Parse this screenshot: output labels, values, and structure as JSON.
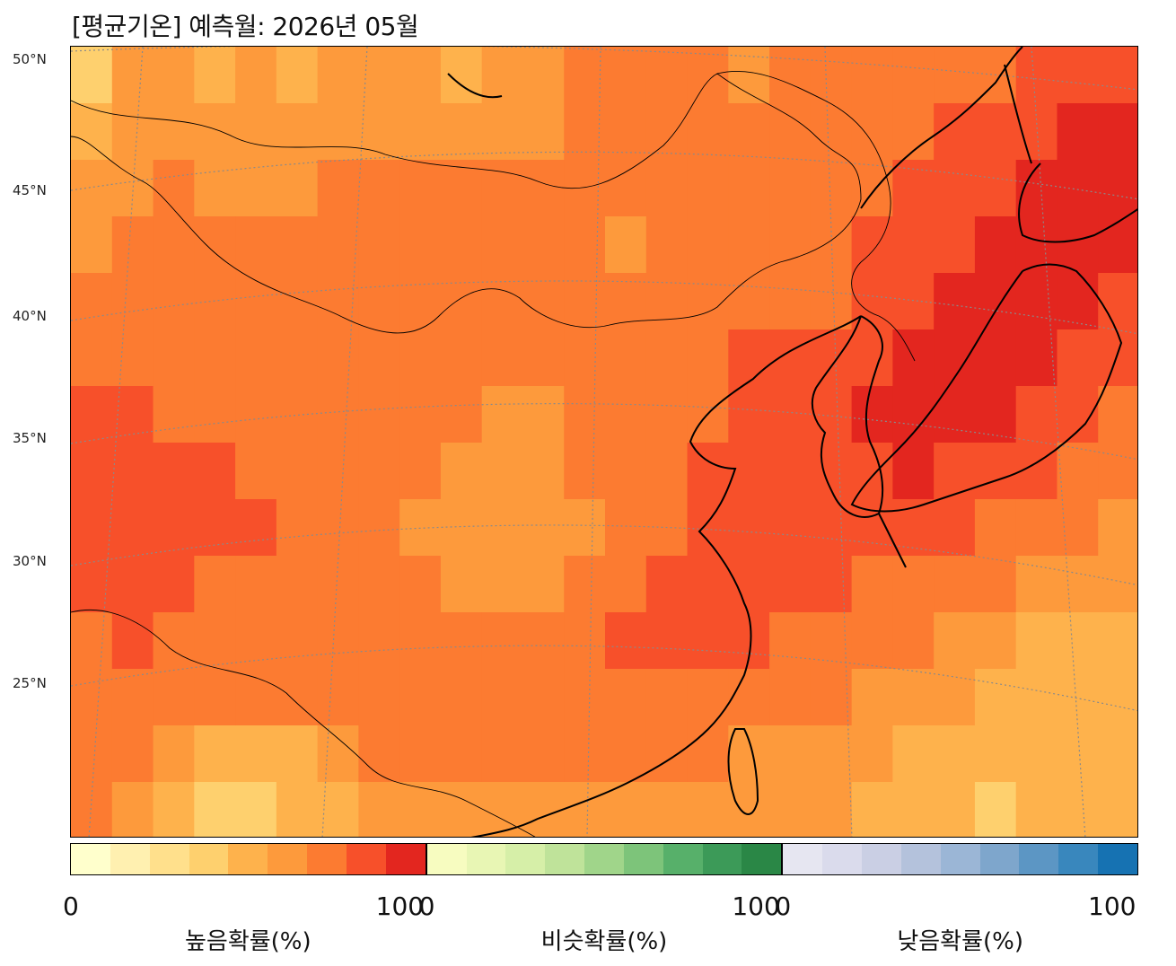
{
  "title": "[평균기온] 예측월: 2026년 05월",
  "lat_labels": [
    "50°N",
    "45°N",
    "40°N",
    "35°N",
    "30°N",
    "25°N"
  ],
  "colorbars": [
    {
      "label": "높음확률(%)",
      "min": "0",
      "max": "100",
      "colors": [
        "#ffffcc",
        "#fff0b0",
        "#ffe08c",
        "#fed06e",
        "#feb24c",
        "#fd9a3c",
        "#fc7b31",
        "#f7502a",
        "#e3261f"
      ]
    },
    {
      "label": "비슷확률(%)",
      "min": "0",
      "max": "100",
      "colors": [
        "#f7fcc0",
        "#e8f6b4",
        "#d6efa8",
        "#bfe39a",
        "#a0d58a",
        "#7dc47a",
        "#57b06a",
        "#3c9a58",
        "#2a8746"
      ]
    },
    {
      "label": "낮음확률(%)",
      "min": "0",
      "max": "100",
      "colors": [
        "#e6e6f1",
        "#dadbec",
        "#cacfe4",
        "#b4c2dc",
        "#9bb6d6",
        "#7ea6cc",
        "#5c96c4",
        "#3987bd",
        "#1672b2"
      ]
    }
  ],
  "map": {
    "region": "East Asia",
    "variable": "평균기온",
    "category_shown": "높음",
    "high_probability_level_grid": [
      [
        3,
        5,
        5,
        4,
        5,
        4,
        5,
        5,
        5,
        4,
        5,
        5,
        6,
        6,
        6,
        6,
        5,
        6,
        6,
        6,
        6,
        6,
        6,
        7,
        7,
        7
      ],
      [
        4,
        5,
        5,
        5,
        5,
        5,
        5,
        5,
        5,
        5,
        5,
        5,
        6,
        6,
        6,
        6,
        6,
        6,
        6,
        6,
        6,
        7,
        7,
        7,
        8,
        8
      ],
      [
        5,
        5,
        6,
        5,
        5,
        5,
        6,
        6,
        6,
        6,
        6,
        6,
        6,
        6,
        6,
        6,
        6,
        6,
        6,
        6,
        7,
        7,
        7,
        8,
        8,
        8
      ],
      [
        5,
        6,
        6,
        6,
        6,
        6,
        6,
        6,
        6,
        6,
        6,
        6,
        6,
        5,
        6,
        6,
        6,
        6,
        6,
        7,
        7,
        7,
        8,
        8,
        8,
        8
      ],
      [
        6,
        6,
        6,
        6,
        6,
        6,
        6,
        6,
        6,
        6,
        6,
        6,
        6,
        6,
        6,
        6,
        6,
        6,
        6,
        7,
        7,
        8,
        8,
        8,
        8,
        7
      ],
      [
        6,
        6,
        6,
        6,
        6,
        6,
        6,
        6,
        6,
        6,
        6,
        6,
        6,
        6,
        6,
        6,
        7,
        7,
        7,
        7,
        8,
        8,
        8,
        8,
        7,
        7
      ],
      [
        7,
        7,
        6,
        6,
        6,
        6,
        6,
        6,
        6,
        6,
        5,
        5,
        6,
        6,
        6,
        6,
        7,
        7,
        7,
        8,
        8,
        8,
        8,
        7,
        7,
        6
      ],
      [
        7,
        7,
        7,
        7,
        6,
        6,
        6,
        6,
        6,
        5,
        5,
        5,
        6,
        6,
        6,
        7,
        7,
        7,
        7,
        7,
        8,
        7,
        7,
        7,
        6,
        6
      ],
      [
        7,
        7,
        7,
        7,
        7,
        6,
        6,
        6,
        5,
        5,
        5,
        5,
        5,
        6,
        6,
        7,
        7,
        7,
        7,
        7,
        7,
        7,
        6,
        6,
        6,
        5
      ],
      [
        7,
        7,
        7,
        6,
        6,
        6,
        6,
        6,
        6,
        5,
        5,
        5,
        6,
        6,
        7,
        7,
        7,
        7,
        7,
        6,
        6,
        6,
        6,
        5,
        5,
        5
      ],
      [
        6,
        7,
        6,
        6,
        6,
        6,
        6,
        6,
        6,
        6,
        6,
        6,
        6,
        7,
        7,
        7,
        7,
        6,
        6,
        6,
        6,
        5,
        5,
        4,
        4,
        4
      ],
      [
        6,
        6,
        6,
        6,
        6,
        6,
        6,
        6,
        6,
        6,
        6,
        6,
        6,
        6,
        6,
        6,
        6,
        6,
        6,
        5,
        5,
        5,
        4,
        4,
        4,
        4
      ],
      [
        6,
        6,
        5,
        4,
        4,
        4,
        5,
        6,
        6,
        6,
        6,
        6,
        6,
        6,
        6,
        6,
        5,
        5,
        5,
        5,
        4,
        4,
        4,
        4,
        4,
        4
      ],
      [
        6,
        5,
        4,
        3,
        3,
        4,
        4,
        5,
        5,
        5,
        5,
        5,
        5,
        5,
        5,
        5,
        5,
        5,
        5,
        4,
        4,
        4,
        3,
        4,
        4,
        4
      ]
    ]
  }
}
